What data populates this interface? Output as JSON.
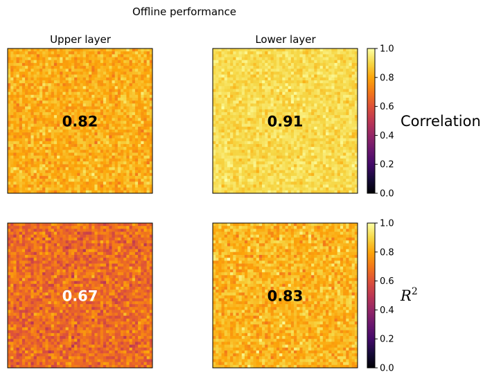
{
  "suptitle": "Offline performance",
  "colormap": "inferno",
  "chart_data": [
    {
      "type": "heatmap",
      "row": "Correlation",
      "layer": "Upper layer",
      "title": "Upper layer",
      "summary_label": "0.82",
      "grid_size": [
        50,
        50
      ],
      "mean_value": 0.82,
      "value_spread": 0.07,
      "label_color": "#000000",
      "xticks": [],
      "yticks": []
    },
    {
      "type": "heatmap",
      "row": "Correlation",
      "layer": "Lower layer",
      "title": "Lower layer",
      "summary_label": "0.91",
      "grid_size": [
        50,
        50
      ],
      "mean_value": 0.91,
      "value_spread": 0.045,
      "label_color": "#000000",
      "xticks": [],
      "yticks": []
    },
    {
      "type": "heatmap",
      "row": "R^2",
      "layer": "Upper layer",
      "title": "",
      "summary_label": "0.67",
      "grid_size": [
        50,
        50
      ],
      "mean_value": 0.67,
      "value_spread": 0.095,
      "label_color": "#ffffff",
      "xticks": [],
      "yticks": []
    },
    {
      "type": "heatmap",
      "row": "R^2",
      "layer": "Lower layer",
      "title": "",
      "summary_label": "0.83",
      "grid_size": [
        50,
        50
      ],
      "mean_value": 0.83,
      "value_spread": 0.075,
      "label_color": "#000000",
      "xticks": [],
      "yticks": []
    }
  ],
  "colorbars": [
    {
      "label": "Correlation",
      "label_is_math": false,
      "range": [
        0.0,
        1.0
      ],
      "ticks": [
        "0.0",
        "0.2",
        "0.4",
        "0.6",
        "0.8",
        "1.0"
      ]
    },
    {
      "label": "R",
      "label_superscript": "2",
      "label_is_math": true,
      "range": [
        0.0,
        1.0
      ],
      "ticks": [
        "0.0",
        "0.2",
        "0.4",
        "0.6",
        "0.8",
        "1.0"
      ]
    }
  ]
}
